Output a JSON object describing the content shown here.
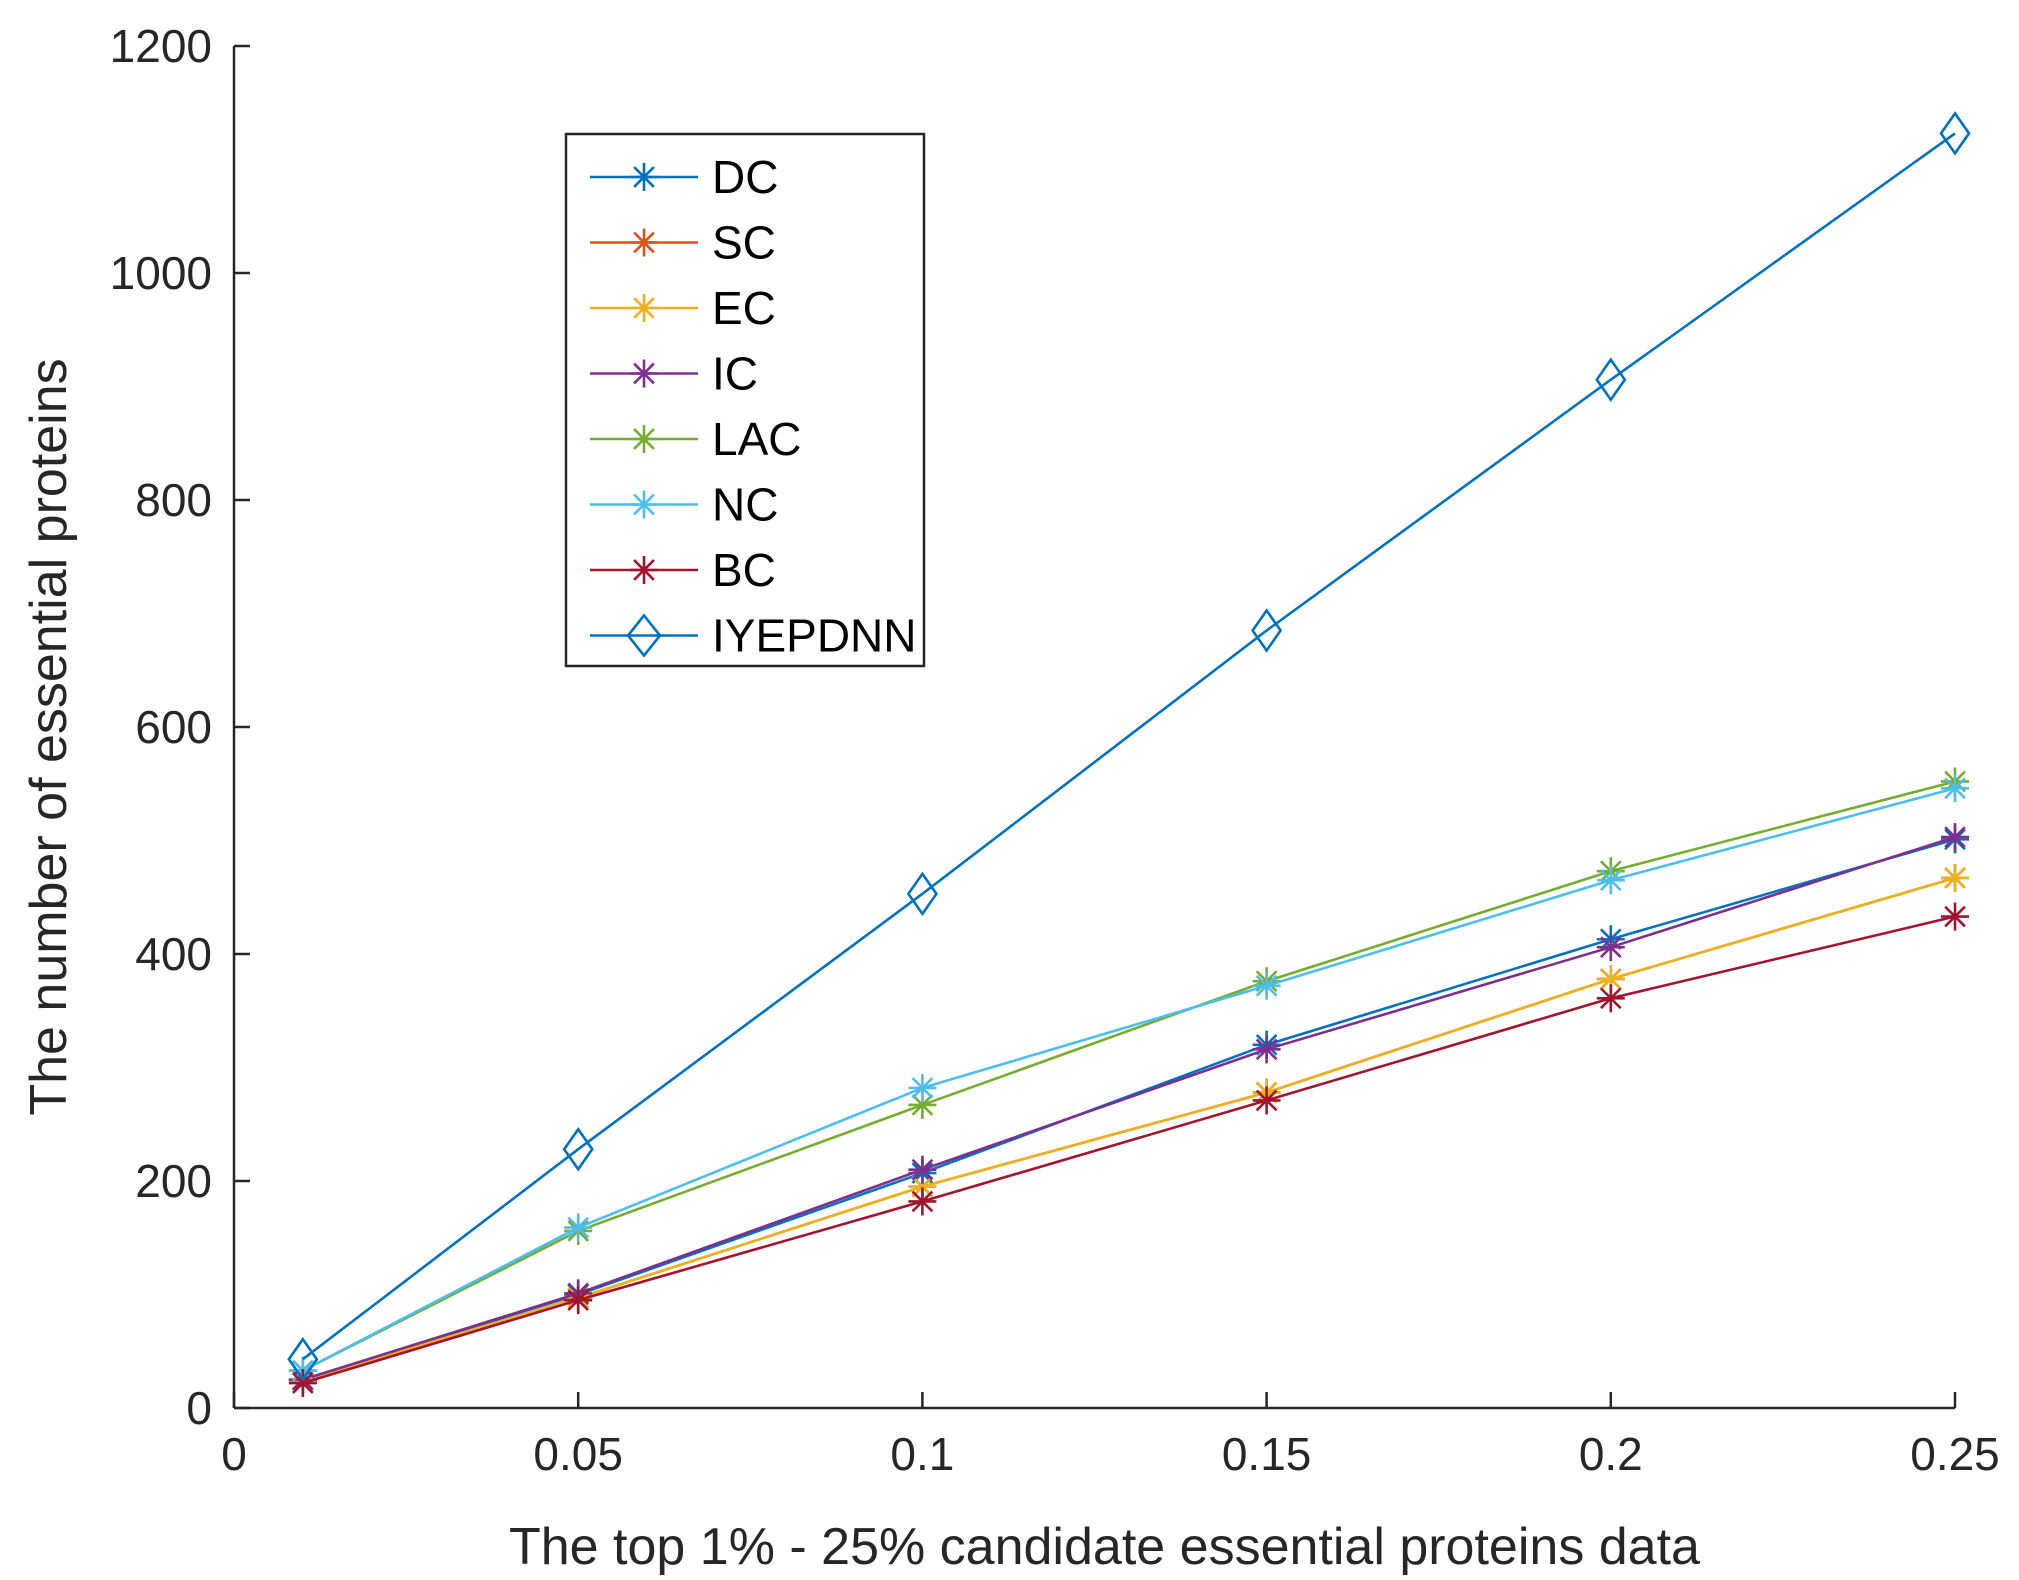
{
  "chart_data": {
    "type": "line",
    "title": "",
    "xlabel": "The top 1% - 25% candidate essential proteins data",
    "ylabel": "The number of essential proteins",
    "xlim": [
      0,
      0.25
    ],
    "ylim": [
      0,
      1200
    ],
    "xticks": [
      0,
      0.05,
      0.1,
      0.15,
      0.2,
      0.25
    ],
    "xtick_labels": [
      "0",
      "0.05",
      "0.1",
      "0.15",
      "0.2",
      "0.25"
    ],
    "yticks": [
      0,
      200,
      400,
      600,
      800,
      1000,
      1200
    ],
    "ytick_labels": [
      "0",
      "200",
      "400",
      "600",
      "800",
      "1000",
      "1200"
    ],
    "grid": false,
    "legend_position": "top-left inside",
    "x": [
      0.01,
      0.05,
      0.1,
      0.15,
      0.2,
      0.25
    ],
    "series": [
      {
        "name": "DC",
        "color": "#0072BD",
        "marker": "asterisk",
        "values": [
          25,
          100,
          207,
          320,
          413,
          501
        ]
      },
      {
        "name": "SC",
        "color": "#D95319",
        "marker": "asterisk",
        "values": [
          24,
          97,
          195,
          278,
          378,
          467
        ]
      },
      {
        "name": "EC",
        "color": "#EDB120",
        "marker": "asterisk",
        "values": [
          24,
          97,
          195,
          278,
          378,
          467
        ]
      },
      {
        "name": "IC",
        "color": "#7E2F8E",
        "marker": "asterisk",
        "values": [
          25,
          101,
          210,
          316,
          406,
          503
        ]
      },
      {
        "name": "LAC",
        "color": "#77AC30",
        "marker": "asterisk",
        "values": [
          33,
          156,
          267,
          376,
          473,
          552
        ]
      },
      {
        "name": "NC",
        "color": "#4DBEEE",
        "marker": "asterisk",
        "values": [
          33,
          159,
          282,
          372,
          465,
          546
        ]
      },
      {
        "name": "BC",
        "color": "#A2142F",
        "marker": "asterisk",
        "values": [
          22,
          95,
          182,
          271,
          361,
          433
        ]
      },
      {
        "name": "IYEPDNN",
        "color": "#0072BD",
        "marker": "diamond",
        "values": [
          43,
          228,
          453,
          685,
          906,
          1123
        ]
      }
    ]
  }
}
